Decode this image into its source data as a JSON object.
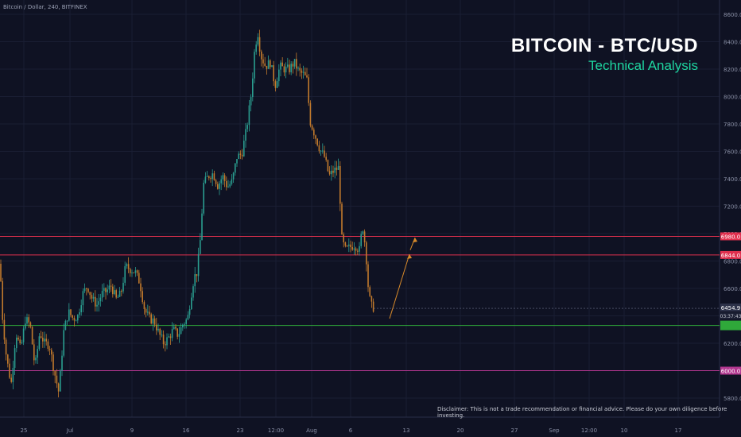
{
  "header": {
    "symbol_info": "Bitcoin / Dollar, 240, BITFINEX",
    "title": "BITCOIN - BTC/USD",
    "subtitle": "Technical Analysis"
  },
  "disclaimer": "Disclaimer: This is not a trade recommendation or financial advice. Please do your own diligence before investing.",
  "colors": {
    "background": "#0f1223",
    "up_candle": "#2a9d8f",
    "down_candle": "#c27a2c",
    "resistance_line": "#e0304e",
    "support_line": "#2fa83a",
    "lower_support_line": "#b2368f",
    "projection_arrow": "#d88a2a",
    "title_text": "#ffffff",
    "subtitle_text": "#1ed6a0"
  },
  "chart_data": {
    "type": "candlestick",
    "title": "BITCOIN - BTC/USD",
    "subtitle": "Technical Analysis",
    "xlabel": "",
    "ylabel": "",
    "ylim": [
      5650,
      8700
    ],
    "grid": true,
    "y_ticks": [
      5800,
      6000,
      6200,
      6400,
      6600,
      6800,
      7000,
      7200,
      7400,
      7600,
      7800,
      8000,
      8200,
      8400,
      8600
    ],
    "y_tick_labels": [
      "5800.0",
      "6000.0",
      "6200.0",
      "6400.0",
      "6600.0",
      "6800.0",
      "7000.0",
      "7200.0",
      "7400.0",
      "7600.0",
      "7800.0",
      "8000.0",
      "8200.0",
      "8400.0",
      "8600.0"
    ],
    "x_ticks": [
      {
        "label": "25",
        "pos": 0
      },
      {
        "label": "Jul",
        "pos": 1
      },
      {
        "label": "9",
        "pos": 2
      },
      {
        "label": "16",
        "pos": 3
      },
      {
        "label": "23",
        "pos": 4
      },
      {
        "label": "12:00",
        "pos": 5
      },
      {
        "label": "Aug",
        "pos": 6
      },
      {
        "label": "6",
        "pos": 7
      },
      {
        "label": "13",
        "pos": 8
      },
      {
        "label": "20",
        "pos": 9
      },
      {
        "label": "27",
        "pos": 10
      },
      {
        "label": "Sep",
        "pos": 11
      },
      {
        "label": "12:00",
        "pos": 12
      },
      {
        "label": "10",
        "pos": 13
      },
      {
        "label": "17",
        "pos": 14
      }
    ],
    "price_path": [
      [
        0,
        6780
      ],
      [
        3,
        6400
      ],
      [
        8,
        6100
      ],
      [
        14,
        5900
      ],
      [
        20,
        6280
      ],
      [
        26,
        6150
      ],
      [
        32,
        6380
      ],
      [
        38,
        6330
      ],
      [
        44,
        6020
      ],
      [
        50,
        6280
      ],
      [
        56,
        6200
      ],
      [
        62,
        6190
      ],
      [
        68,
        6000
      ],
      [
        74,
        5840
      ],
      [
        80,
        6280
      ],
      [
        86,
        6430
      ],
      [
        92,
        6380
      ],
      [
        98,
        6400
      ],
      [
        104,
        6560
      ],
      [
        110,
        6620
      ],
      [
        116,
        6520
      ],
      [
        122,
        6480
      ],
      [
        128,
        6560
      ],
      [
        134,
        6580
      ],
      [
        140,
        6620
      ],
      [
        146,
        6520
      ],
      [
        152,
        6560
      ],
      [
        158,
        6760
      ],
      [
        164,
        6740
      ],
      [
        170,
        6720
      ],
      [
        176,
        6640
      ],
      [
        182,
        6440
      ],
      [
        188,
        6380
      ],
      [
        194,
        6360
      ],
      [
        200,
        6270
      ],
      [
        206,
        6200
      ],
      [
        212,
        6240
      ],
      [
        218,
        6300
      ],
      [
        224,
        6260
      ],
      [
        230,
        6340
      ],
      [
        236,
        6380
      ],
      [
        240,
        6540
      ],
      [
        244,
        6680
      ],
      [
        248,
        6720
      ],
      [
        252,
        6960
      ],
      [
        256,
        7360
      ],
      [
        262,
        7420
      ],
      [
        268,
        7440
      ],
      [
        274,
        7350
      ],
      [
        280,
        7420
      ],
      [
        286,
        7340
      ],
      [
        292,
        7380
      ],
      [
        298,
        7560
      ],
      [
        304,
        7580
      ],
      [
        310,
        7760
      ],
      [
        316,
        8020
      ],
      [
        320,
        8320
      ],
      [
        324,
        8480
      ],
      [
        328,
        8300
      ],
      [
        334,
        8220
      ],
      [
        340,
        8250
      ],
      [
        346,
        8080
      ],
      [
        352,
        8220
      ],
      [
        358,
        8200
      ],
      [
        364,
        8200
      ],
      [
        370,
        8250
      ],
      [
        376,
        8180
      ],
      [
        382,
        8160
      ],
      [
        386,
        8120
      ],
      [
        390,
        7820
      ],
      [
        396,
        7720
      ],
      [
        402,
        7620
      ],
      [
        408,
        7560
      ],
      [
        414,
        7420
      ],
      [
        420,
        7460
      ],
      [
        426,
        7480
      ],
      [
        430,
        6960
      ],
      [
        434,
        6880
      ],
      [
        440,
        6900
      ],
      [
        446,
        6920
      ],
      [
        452,
        6880
      ],
      [
        456,
        7060
      ],
      [
        460,
        6880
      ],
      [
        463,
        6620
      ],
      [
        466,
        6480
      ],
      [
        469,
        6460
      ],
      [
        472,
        6460
      ]
    ],
    "horizontal_levels": [
      {
        "name": "resistance-upper",
        "value": 6980,
        "label": "6980.0",
        "color": "#e0304e"
      },
      {
        "name": "resistance-lower",
        "value": 6844,
        "label": "6844.0",
        "color": "#e0304e"
      },
      {
        "name": "support",
        "value": 6330,
        "label": "",
        "color": "#2fa83a"
      },
      {
        "name": "lower-support",
        "value": 6000,
        "label": "6000.0",
        "color": "#b2368f"
      }
    ],
    "current_price": {
      "value": 6454.9,
      "label": "6454.9",
      "countdown": "03:37:43"
    },
    "projection": {
      "points": [
        [
          490,
          6380
        ],
        [
          515,
          6850
        ],
        [
          522,
          6970
        ]
      ],
      "arrow_heads_at": [
        [
          515,
          6850
        ],
        [
          522,
          6970
        ]
      ]
    }
  }
}
